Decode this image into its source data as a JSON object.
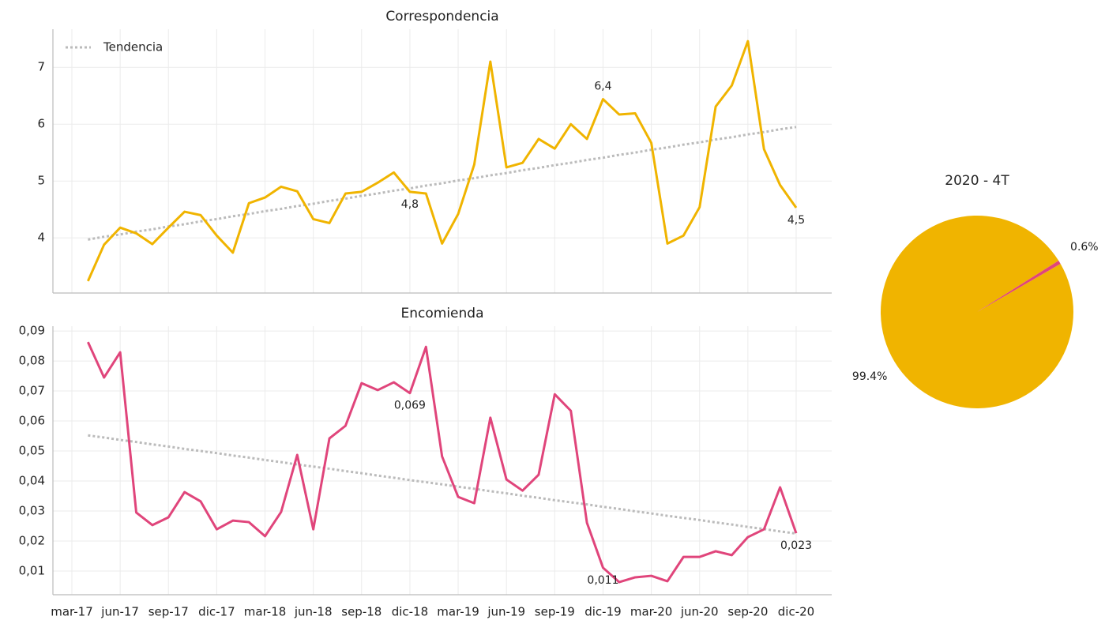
{
  "chart_data": [
    {
      "type": "line",
      "title": "Correspondencia",
      "legend": "upper left",
      "grid": true,
      "ylim": [
        3.03,
        7.67
      ],
      "yticks": [
        4,
        5,
        6,
        7
      ],
      "series": [
        {
          "color": "#f0b400",
          "values": [
            null,
            3.24,
            3.88,
            4.18,
            4.08,
            3.89,
            4.18,
            4.46,
            4.4,
            4.04,
            3.74,
            4.61,
            4.71,
            4.9,
            4.82,
            4.33,
            4.26,
            4.78,
            4.81,
            4.97,
            5.15,
            4.81,
            4.78,
            3.9,
            4.42,
            5.29,
            7.1,
            5.24,
            5.32,
            5.74,
            5.57,
            6.0,
            5.74,
            6.44,
            6.17,
            6.19,
            5.67,
            3.9,
            4.04,
            4.54,
            6.31,
            6.68,
            7.46,
            5.56,
            4.93,
            4.53
          ],
          "value_labels": [
            null,
            null,
            null,
            null,
            null,
            null,
            null,
            null,
            null,
            null,
            null,
            null,
            null,
            null,
            null,
            null,
            null,
            null,
            null,
            null,
            null,
            "4,8",
            null,
            null,
            null,
            null,
            null,
            null,
            null,
            null,
            null,
            null,
            null,
            "6,4",
            null,
            null,
            null,
            null,
            null,
            null,
            null,
            null,
            null,
            null,
            null,
            "4,5"
          ]
        },
        {
          "name": "Tendencia",
          "color": "#bbbbbb",
          "dotted": true,
          "values": [
            null,
            3.97,
            4.02,
            4.06,
            4.11,
            4.15,
            4.2,
            4.24,
            4.29,
            4.33,
            4.38,
            4.42,
            4.47,
            4.51,
            4.56,
            4.6,
            4.65,
            4.69,
            4.74,
            4.78,
            4.83,
            4.87,
            4.92,
            4.96,
            5.01,
            5.05,
            5.1,
            5.14,
            5.19,
            5.23,
            5.28,
            5.32,
            5.37,
            5.41,
            5.46,
            5.5,
            5.55,
            5.59,
            5.64,
            5.68,
            5.73,
            5.77,
            5.82,
            5.86,
            5.91,
            5.95
          ]
        }
      ]
    },
    {
      "type": "line",
      "title": "Encomienda",
      "grid": true,
      "categories": [
        "mar-17",
        null,
        null,
        "jun-17",
        null,
        null,
        "sep-17",
        null,
        null,
        "dic-17",
        null,
        null,
        "mar-18",
        null,
        null,
        "jun-18",
        null,
        null,
        "sep-18",
        null,
        null,
        "dic-18",
        null,
        null,
        "mar-19",
        null,
        null,
        "jun-19",
        null,
        null,
        "sep-19",
        null,
        null,
        "dic-19",
        null,
        null,
        "mar-20",
        null,
        null,
        "jun-20",
        null,
        null,
        "sep-20",
        null,
        null,
        "dic-20"
      ],
      "ylim": [
        0.0021,
        0.0916
      ],
      "yticks": [
        {
          "value": 0.01,
          "label": "0,01"
        },
        {
          "value": 0.02,
          "label": "0,02"
        },
        {
          "value": 0.03,
          "label": "0,03"
        },
        {
          "value": 0.04,
          "label": "0,04"
        },
        {
          "value": 0.05,
          "label": "0,05"
        },
        {
          "value": 0.06,
          "label": "0,06"
        },
        {
          "value": 0.07,
          "label": "0,07"
        },
        {
          "value": 0.08,
          "label": "0,08"
        },
        {
          "value": 0.09,
          "label": "0,09"
        }
      ],
      "series": [
        {
          "color": "#e0457b",
          "values": [
            null,
            0.0863,
            0.0745,
            0.0829,
            0.0295,
            0.0253,
            0.0279,
            0.0363,
            0.0332,
            0.0239,
            0.0268,
            0.0263,
            0.0216,
            0.0297,
            0.0487,
            0.0239,
            0.0542,
            0.0584,
            0.0726,
            0.0703,
            0.0729,
            0.0693,
            0.0847,
            0.0482,
            0.0347,
            0.0326,
            0.0611,
            0.0405,
            0.0368,
            0.0421,
            0.0689,
            0.0634,
            0.0261,
            0.0111,
            0.0063,
            0.0079,
            0.0084,
            0.0066,
            0.0147,
            0.0147,
            0.0166,
            0.0153,
            0.0213,
            0.0239,
            0.0379,
            0.0226
          ],
          "value_labels": [
            null,
            null,
            null,
            null,
            null,
            null,
            null,
            null,
            null,
            null,
            null,
            null,
            null,
            null,
            null,
            null,
            null,
            null,
            null,
            null,
            null,
            "0,069",
            null,
            null,
            null,
            null,
            null,
            null,
            null,
            null,
            null,
            null,
            null,
            "0,011",
            null,
            null,
            null,
            null,
            null,
            null,
            null,
            null,
            null,
            null,
            null,
            "0,023"
          ]
        },
        {
          "color": "#bbbbbb",
          "dotted": true,
          "values": [
            null,
            0.0552,
            0.0545,
            0.0537,
            0.053,
            0.0522,
            0.0515,
            0.0507,
            0.05,
            0.0493,
            0.0485,
            0.0478,
            0.047,
            0.0463,
            0.0455,
            0.0448,
            0.0441,
            0.0433,
            0.0426,
            0.0418,
            0.0411,
            0.0403,
            0.0396,
            0.0389,
            0.0381,
            0.0374,
            0.0366,
            0.0359,
            0.0351,
            0.0344,
            0.0336,
            0.0329,
            0.0322,
            0.0314,
            0.0307,
            0.0299,
            0.0292,
            0.0284,
            0.0277,
            0.027,
            0.0262,
            0.0255,
            0.0247,
            0.024,
            0.0232,
            0.0225
          ]
        }
      ]
    },
    {
      "type": "pie",
      "title": "2020 - 4T",
      "values": [
        99.4,
        0.6
      ],
      "value_labels": [
        "99.4%",
        "0.6%"
      ],
      "colors": [
        "#f0b400",
        "#e0457b"
      ]
    }
  ]
}
